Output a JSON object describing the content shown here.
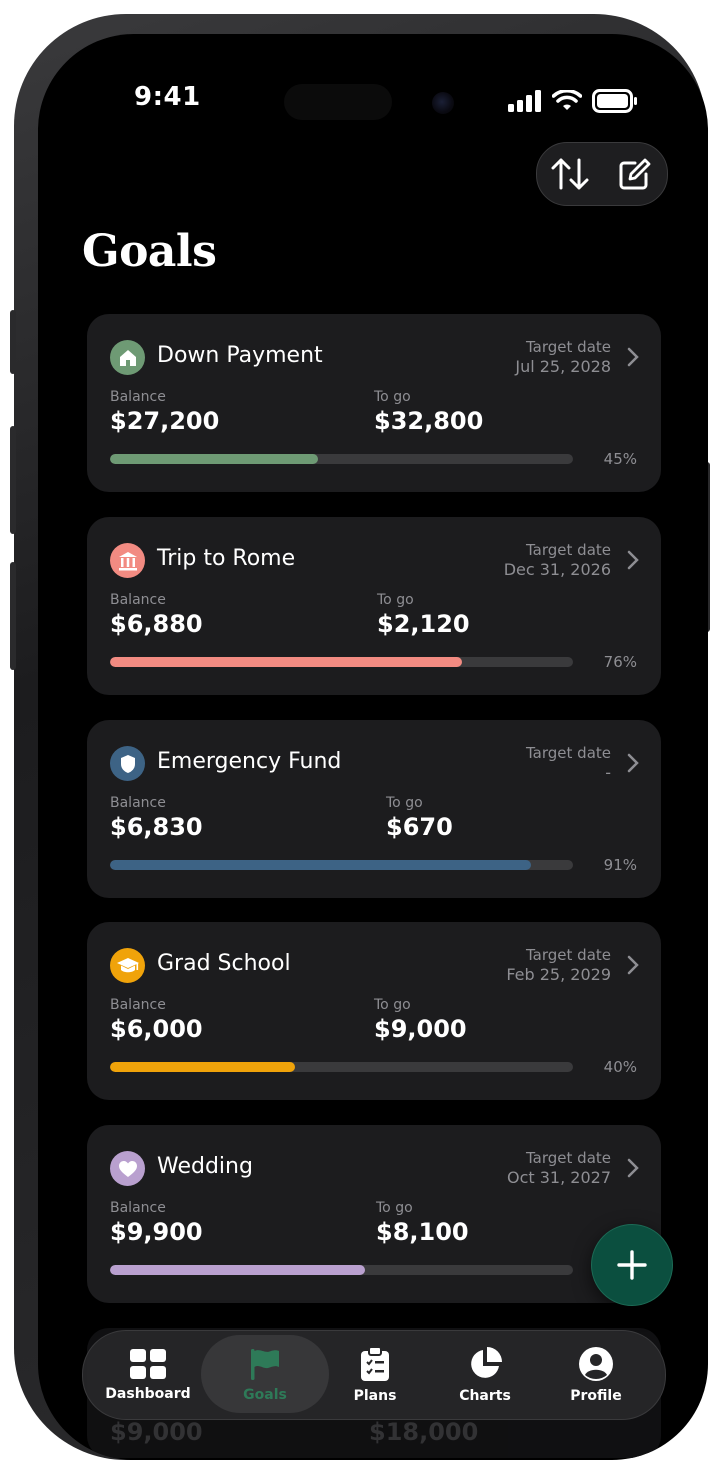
{
  "status_bar": {
    "time": "9:41"
  },
  "header": {
    "sort_icon": "sort-arrows-icon",
    "edit_icon": "edit-icon"
  },
  "page": {
    "title": "Goals"
  },
  "labels": {
    "target_date": "Target date",
    "balance": "Balance",
    "to_go": "To go"
  },
  "goals": [
    {
      "name": "Down Payment",
      "icon": "house-icon",
      "color": "#6e9a74",
      "target_date": "Jul 25, 2028",
      "balance": "$27,200",
      "to_go": "$32,800",
      "percent_label": "45%",
      "progress": 0.45
    },
    {
      "name": "Trip to Rome",
      "icon": "landmark-icon",
      "color": "#f28b82",
      "target_date": "Dec 31, 2026",
      "balance": "$6,880",
      "to_go": "$2,120",
      "percent_label": "76%",
      "progress": 0.76
    },
    {
      "name": "Emergency Fund",
      "icon": "shield-icon",
      "color": "#3d6385",
      "target_date": "-",
      "balance": "$6,830",
      "to_go": "$670",
      "percent_label": "91%",
      "progress": 0.91
    },
    {
      "name": "Grad School",
      "icon": "graduation-cap-icon",
      "color": "#f0a30a",
      "target_date": "Feb 25, 2029",
      "balance": "$6,000",
      "to_go": "$9,000",
      "percent_label": "40%",
      "progress": 0.4
    },
    {
      "name": "Wedding",
      "icon": "heart-icon",
      "color": "#b9a0cf",
      "target_date": "Oct 31, 2027",
      "balance": "$9,900",
      "to_go": "$8,100",
      "percent_label": "",
      "progress": 0.55
    }
  ],
  "partial_goal": {
    "balance": "$9,000",
    "to_go": "$18,000"
  },
  "fab": {
    "icon": "plus-icon"
  },
  "tabs": [
    {
      "label": "Dashboard",
      "icon": "grid-icon",
      "active": false
    },
    {
      "label": "Goals",
      "icon": "flag-icon",
      "active": true
    },
    {
      "label": "Plans",
      "icon": "clipboard-icon",
      "active": false
    },
    {
      "label": "Charts",
      "icon": "pie-chart-icon",
      "active": false
    },
    {
      "label": "Profile",
      "icon": "profile-icon",
      "active": false
    }
  ],
  "colors": {
    "accent": "#2e7a58",
    "fab": "#0b4f3f",
    "card_bg": "#1c1c1e",
    "track": "#3a3a3c"
  }
}
